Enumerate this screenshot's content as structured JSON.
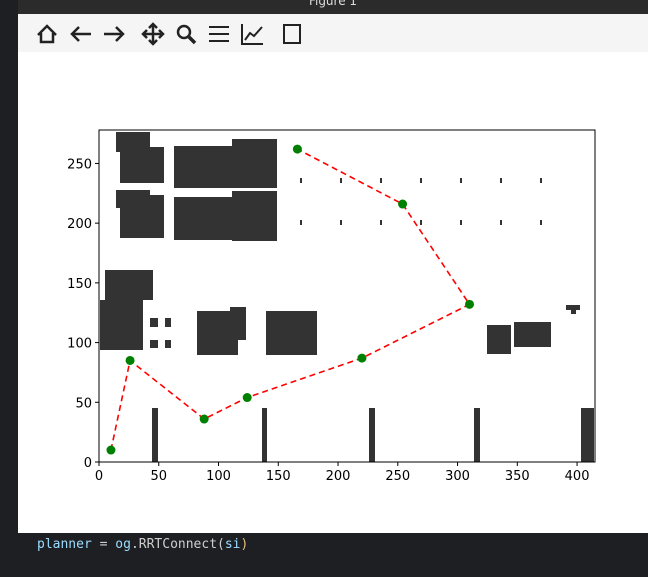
{
  "window": {
    "title": "Figure 1"
  },
  "chart_data": {
    "type": "line",
    "series": [
      {
        "x": [
          10,
          26,
          88,
          124,
          220,
          310,
          254,
          166
        ],
        "values": [
          10,
          85,
          36,
          54,
          87,
          132,
          216,
          262
        ],
        "color": "#ff0000",
        "marker_color": "#008000",
        "dashed": true
      }
    ],
    "xlim": [
      0,
      415
    ],
    "ylim": [
      0,
      278
    ],
    "xticks": [
      0,
      50,
      100,
      150,
      200,
      250,
      300,
      350,
      400
    ],
    "yticks": [
      0,
      50,
      100,
      150,
      200,
      250
    ],
    "grid": false
  },
  "code_line": [
    "planner",
    " = ",
    "og",
    ".RRTConnect(",
    "si",
    ")"
  ]
}
